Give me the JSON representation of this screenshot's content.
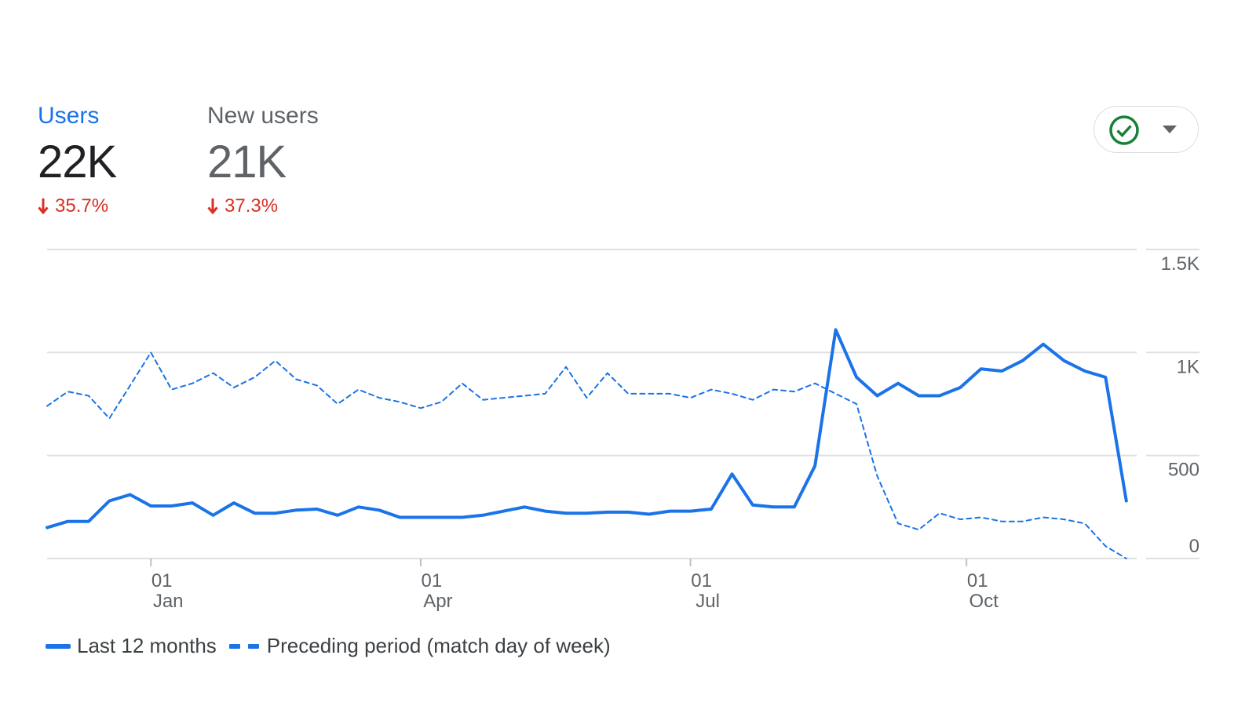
{
  "metrics": [
    {
      "label": "Users",
      "value": "22K",
      "change": "35.7%"
    },
    {
      "label": "New users",
      "value": "21K",
      "change": "37.3%"
    }
  ],
  "colors": {
    "accent": "#1a73e8",
    "negative": "#d93025",
    "ok": "#188038",
    "grid": "#e0e0e0"
  },
  "icons": {
    "status": "check-circle-icon",
    "dropdown": "caret-down-icon",
    "change": "arrow-down-icon"
  },
  "chart_data": {
    "type": "line",
    "ylim": [
      0,
      1500
    ],
    "y_ticks": [
      {
        "value": 0,
        "label": "0"
      },
      {
        "value": 500,
        "label": "500"
      },
      {
        "value": 1000,
        "label": "1K"
      },
      {
        "value": 1500,
        "label": "1.5K"
      }
    ],
    "x_ticks": [
      {
        "week": 5,
        "day": "01",
        "month": "Jan"
      },
      {
        "week": 18,
        "day": "01",
        "month": "Apr"
      },
      {
        "week": 31,
        "day": "01",
        "month": "Jul"
      },
      {
        "week": 44.3,
        "day": "01",
        "month": "Oct"
      }
    ],
    "x_range": [
      0,
      52.5
    ],
    "grid": true,
    "legend_position": "bottom-left",
    "series": [
      {
        "name": "Last 12 months",
        "style": "solid",
        "values": [
          150,
          180,
          180,
          280,
          310,
          255,
          255,
          270,
          210,
          270,
          220,
          220,
          235,
          240,
          210,
          250,
          235,
          200,
          200,
          200,
          200,
          210,
          230,
          250,
          230,
          220,
          220,
          225,
          225,
          215,
          230,
          230,
          240,
          410,
          260,
          250,
          250,
          450,
          1110,
          880,
          790,
          850,
          790,
          790,
          830,
          920,
          910,
          960,
          1040,
          960,
          910,
          880,
          280
        ]
      },
      {
        "name": "Preceding period (match day of week)",
        "style": "dashed",
        "values": [
          740,
          810,
          790,
          680,
          840,
          1000,
          820,
          850,
          900,
          830,
          880,
          960,
          870,
          840,
          750,
          820,
          780,
          760,
          730,
          760,
          850,
          770,
          780,
          790,
          800,
          930,
          780,
          900,
          800,
          800,
          800,
          780,
          820,
          800,
          770,
          820,
          810,
          850,
          800,
          750,
          400,
          170,
          140,
          220,
          190,
          200,
          180,
          180,
          200,
          190,
          170,
          60,
          0
        ]
      }
    ]
  }
}
